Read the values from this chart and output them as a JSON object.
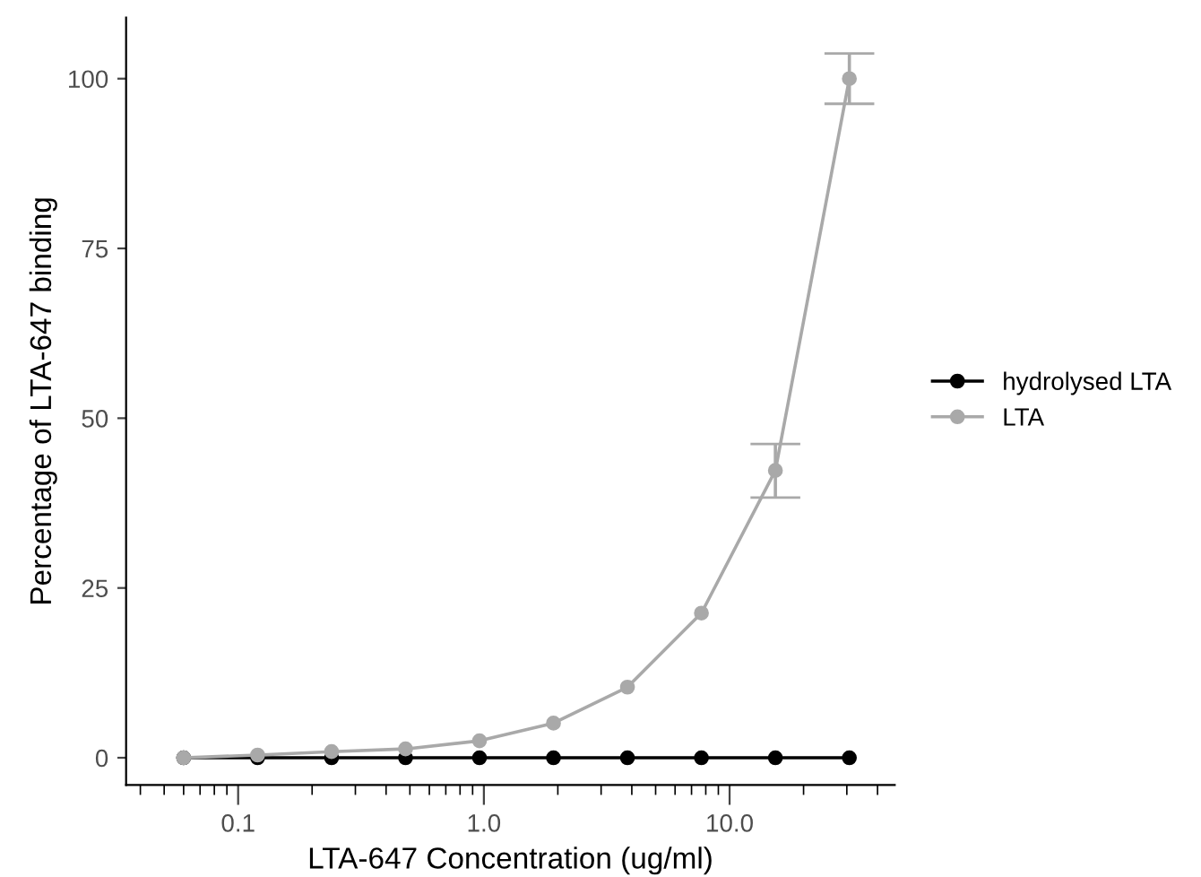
{
  "chart_data": {
    "type": "line",
    "xlabel": "LTA-647 Concentration (ug/ml)",
    "ylabel": "Percentage of LTA-647 binding",
    "x": [
      0.06,
      0.12,
      0.24,
      0.48,
      0.96,
      1.92,
      3.84,
      7.68,
      15.36,
      30.72
    ],
    "series": [
      {
        "name": "hydrolysed LTA",
        "color": "#000000",
        "values": [
          0,
          0,
          0,
          0,
          0,
          0,
          0,
          0,
          0,
          0
        ]
      },
      {
        "name": "LTA",
        "color": "#a9a9a9",
        "values": [
          0,
          0.4,
          0.9,
          1.3,
          2.5,
          5.1,
          10.4,
          21.3,
          42.3,
          100
        ],
        "errors": [
          null,
          null,
          null,
          null,
          null,
          null,
          null,
          null,
          [
            38.3,
            46.2
          ],
          [
            96.3,
            103.7
          ]
        ]
      }
    ],
    "log": "x",
    "xlim": [
      0.035,
      47
    ],
    "xticks": [
      0.1,
      {
        "value": 1,
        "label": "1.0"
      },
      {
        "value": 10,
        "label": "10.0"
      }
    ],
    "ylim": [
      -4,
      109
    ],
    "yticks": [
      0,
      25,
      50,
      75,
      100
    ],
    "grid": false,
    "legend": "right",
    "marker": "circle",
    "line_style": "solid"
  }
}
